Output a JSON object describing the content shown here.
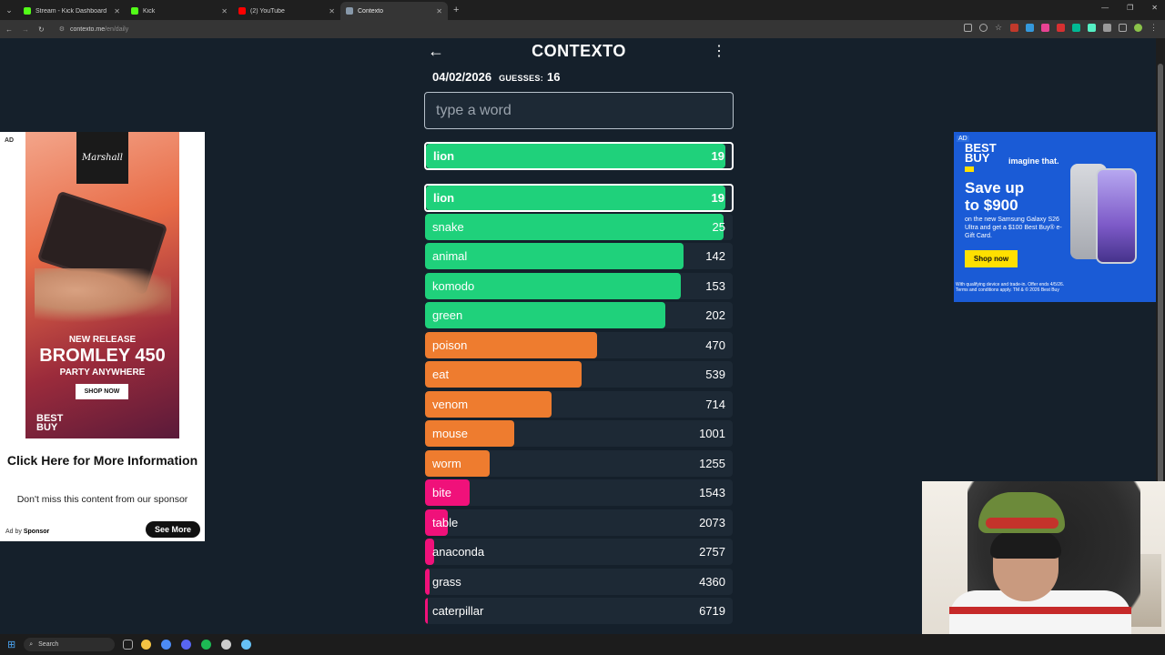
{
  "browser": {
    "tabs": [
      {
        "title": "Stream - Kick Dashboard",
        "favicon_color": "#53fc18",
        "active": false
      },
      {
        "title": "Kick",
        "favicon_color": "#53fc18",
        "active": false
      },
      {
        "title": "(2) YouTube",
        "favicon_color": "#ff0000",
        "active": false
      },
      {
        "title": "Contexto",
        "favicon_color": "#8899aa",
        "active": true
      }
    ],
    "url_host": "contexto.me",
    "url_path": "/en/daily"
  },
  "game": {
    "title": "CONTEXTO",
    "date": "04/02/2026",
    "guesses_label": "GUESSES:",
    "guesses_count": "16",
    "input_placeholder": "type a word",
    "last_guess": {
      "word": "lion",
      "rank": "19"
    },
    "guesses": [
      {
        "word": "lion",
        "rank": "19",
        "fill": 0.98,
        "color": "#1fd17b",
        "highlight": true
      },
      {
        "word": "snake",
        "rank": "25",
        "fill": 0.97,
        "color": "#1fd17b"
      },
      {
        "word": "animal",
        "rank": "142",
        "fill": 0.84,
        "color": "#1fd17b"
      },
      {
        "word": "komodo",
        "rank": "153",
        "fill": 0.83,
        "color": "#1fd17b"
      },
      {
        "word": "green",
        "rank": "202",
        "fill": 0.78,
        "color": "#1fd17b"
      },
      {
        "word": "poison",
        "rank": "470",
        "fill": 0.56,
        "color": "#ee7c2f"
      },
      {
        "word": "eat",
        "rank": "539",
        "fill": 0.51,
        "color": "#ee7c2f"
      },
      {
        "word": "venom",
        "rank": "714",
        "fill": 0.41,
        "color": "#ee7c2f"
      },
      {
        "word": "mouse",
        "rank": "1001",
        "fill": 0.29,
        "color": "#ee7c2f"
      },
      {
        "word": "worm",
        "rank": "1255",
        "fill": 0.21,
        "color": "#ee7c2f"
      },
      {
        "word": "bite",
        "rank": "1543",
        "fill": 0.145,
        "color": "#f0117a"
      },
      {
        "word": "table",
        "rank": "2073",
        "fill": 0.075,
        "color": "#f0117a"
      },
      {
        "word": "anaconda",
        "rank": "2757",
        "fill": 0.03,
        "color": "#f0117a"
      },
      {
        "word": "grass",
        "rank": "4360",
        "fill": 0.015,
        "color": "#f0117a"
      },
      {
        "word": "caterpillar",
        "rank": "6719",
        "fill": 0.01,
        "color": "#f0117a"
      }
    ]
  },
  "ad_left": {
    "tag": "AD",
    "brand": "Marshall",
    "line1": "NEW RELEASE",
    "line2": "BROMLEY 450",
    "line3": "PARTY ANYWHERE",
    "cta_img": "SHOP NOW",
    "bb_logo": "BEST BUY",
    "title": "Click Here for More Information",
    "subtitle": "Don't miss this content from our sponsor",
    "adby_prefix": "Ad by",
    "adby_name": "Sponsor",
    "button": "See More"
  },
  "ad_right": {
    "tag": "AD",
    "logo": "BEST BUY",
    "tagline": "imagine that.",
    "headline": "Save up to $900",
    "body": "on the new Samsung Galaxy S26 Ultra and get a $100 Best Buy® e-Gift Card.",
    "cta": "Shop now",
    "fine": "With qualifying device and trade-in. Offer ends 4/5/26. Terms and conditions apply. TM & © 2026 Best Buy"
  },
  "taskbar": {
    "search_label": "Search",
    "icons": [
      {
        "name": "file-explorer-icon",
        "color": "#f3c343"
      },
      {
        "name": "chrome-icon",
        "color": "#4c8bf5"
      },
      {
        "name": "discord-icon",
        "color": "#5865f2"
      },
      {
        "name": "spotify-icon",
        "color": "#1db954"
      },
      {
        "name": "obs-icon",
        "color": "#cccccc"
      },
      {
        "name": "steam-icon",
        "color": "#66c0f4"
      }
    ]
  }
}
